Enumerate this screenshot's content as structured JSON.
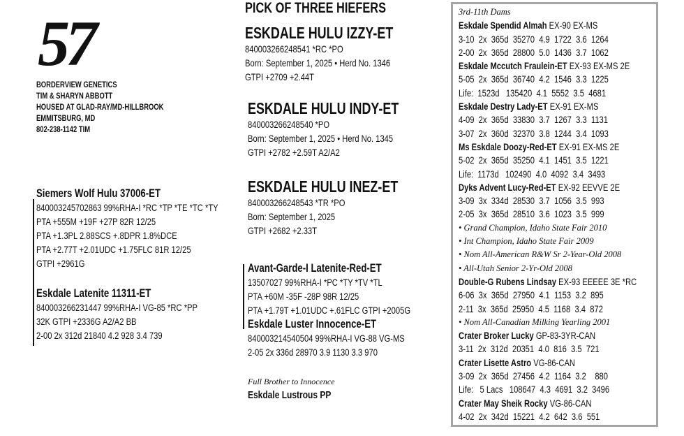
{
  "lot_number": "57",
  "consignor": {
    "lines": [
      "BORDERVIEW GENETICS",
      "TIM & SHARYN ABBOTT",
      "HOUSED AT GLAD-RAY/MD-HILLBROOK",
      "EMMITSBURG, MD",
      "802-238-1142 TIM"
    ]
  },
  "sire": {
    "name": "Siemers Wolf Hulu 37006-ET",
    "lines": [
      "840003245702863 99%RHA-I *RC *TP *TE *TC *TY",
      "PTA +555M +19F +27P 82R 12/25",
      "PTA +1.3PL 2.88SCS +.8DPR 1.8%DCE",
      "PTA +2.77T +2.01UDC +1.75FLC 81R 12/25",
      "GTPI +2961G"
    ]
  },
  "dam": {
    "name": "Eskdale Latenite 11311-ET",
    "lines": [
      "840003266231447 99%RHA-I VG-85 *RC *PP",
      "32K GTPI +2336G A2/A2 BB",
      "2-00  2x  312d  21840  4.2  928  3.4  739"
    ]
  },
  "offering": {
    "heading": "PICK OF THREE HIEFERS",
    "heifers": [
      {
        "name": "ESKDALE HULU IZZY-ET",
        "lines": [
          "840003266248541 *RC *PO",
          "Born: September 1, 2025 • Herd No. 1346",
          "GTPI +2709 +2.44T"
        ]
      },
      {
        "name": "ESKDALE HULU INDY-ET",
        "lines": [
          "840003266248540 *PO",
          "Born: September 1, 2025 • Herd No. 1345",
          "GTPI +2782 +2.59T A2/A2"
        ]
      },
      {
        "name": "ESKDALE HULU INEZ-ET",
        "lines": [
          "840003266248543 *TR *PO",
          "Born: September 1, 2025",
          "GTPI +2682 +2.33T"
        ]
      }
    ]
  },
  "maternal_sire": {
    "name": "Avant-Garde-I Latenite-Red-ET",
    "lines": [
      "13507027 99%RHA-I *PC *TY *TV *TL",
      "PTA +60M -35F -28P 98R 12/25",
      "PTA +1.79T +1.01UDC +.61FLC GTPI +2005G"
    ]
  },
  "granddam": {
    "name": "Eskdale Luster Innocence-ET",
    "lines": [
      "840003214540504 99%RHA-I VG-88 VG-MS",
      "2-05  2x  336d  28970  3.9  1130  3.3  970"
    ]
  },
  "sibling": {
    "note": "Full Brother to Innocence",
    "name": "Eskdale Lustrous PP"
  },
  "dams_panel": {
    "heading": "3rd-11th Dams",
    "entries": [
      {
        "name": "Eskdale Spendid Almah",
        "class": "EX-90 EX-MS",
        "records": [
          "3-10  2x  365d  35270  4.9  1722  3.6  1264",
          "2-00  2x  365d  28800  5.0  1436  3.7  1062"
        ],
        "notes": []
      },
      {
        "name": "Eskdale Mccutch Fraulein-ET",
        "class": "EX-93 EX-MS 2E",
        "records": [
          "5-05  2x  365d  36740  4.2  1546  3.3  1225",
          "Life:  1523d   135420  4.1  5552  3.5  4681"
        ],
        "notes": []
      },
      {
        "name": "Eskdale Destry Lady-ET",
        "class": "EX-91 EX-MS",
        "records": [
          "4-09  2x  365d  33830  3.7  1267  3.3  1131",
          "3-07  2x  360d  32370  3.8  1244  3.4  1093"
        ],
        "notes": []
      },
      {
        "name": "Ms Eskdale Doozy-Red-ET",
        "class": "EX-91 EX-MS 2E",
        "records": [
          "5-02  2x  365d  35250  4.1  1451  3.5  1221",
          "Life:  1173d   102490  4.0  4092  3.4  3493"
        ],
        "notes": []
      },
      {
        "name": "Dyks Advent Lucy-Red-ET",
        "class": "EX-92 EEVVE 2E",
        "records": [
          "3-09  3x  334d  28530  3.7  1056  3.5  993",
          "2-05  3x  365d  28510  3.6  1023  3.5  999"
        ],
        "notes": [
          "• Grand Champion, Idaho State Fair 2010",
          "• Int Champion, Idaho State Fair 2009",
          "• Nom All-American R&W Sr 2-Year-Old 2008",
          "• All-Utah Senior 2-Yr-Old 2008"
        ]
      },
      {
        "name": "Double-G Rubens Lindsay",
        "class": "EX-93 EEEEE 3E  *RC",
        "records": [
          "6-06  3x  365d  27950  4.1  1153  3.2  895",
          "2-11  3x  365d  25950  4.5  1168  3.4  872"
        ],
        "notes": [
          "• Nom All-Canadian Milking Yearling 2001"
        ]
      },
      {
        "name": "Crater Broker Lucky",
        "class": "GP-83-3YR-CAN",
        "records": [
          "3-11  2x  312d  20351  4.0  816  3.5  721"
        ],
        "notes": []
      },
      {
        "name": "Crater Lisette Astro",
        "class": "VG-86-CAN",
        "records": [
          "3-09  2x  365d  27456  4.2  1164  3.2    880",
          "Life:   5 Lacs   108647  4.3  4691  3.2  3496"
        ],
        "notes": []
      },
      {
        "name": "Crater May Sheik Rocky",
        "class": "VG-86-CAN",
        "records": [
          "4-02  2x  342d  15221  4.2  642  3.6  551"
        ],
        "notes": []
      }
    ]
  }
}
